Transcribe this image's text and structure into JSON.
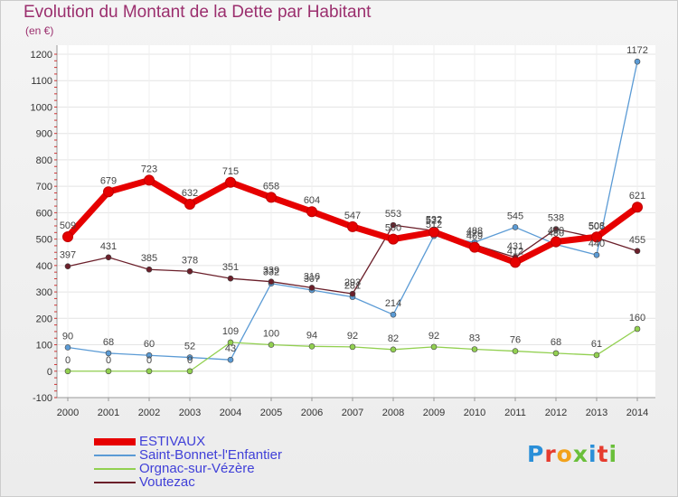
{
  "title": "Evolution du Montant de la Dette par Habitant",
  "subtitle": "(en €)",
  "logo": {
    "text": "Proxiti",
    "colors": [
      "#2a8fd8",
      "#e63b2e",
      "#f2a21b",
      "#6abf3a",
      "#2a8fd8",
      "#e63b2e",
      "#6abf3a"
    ]
  },
  "chart_data": {
    "type": "line",
    "x": [
      "2000",
      "2001",
      "2002",
      "2003",
      "2004",
      "2005",
      "2006",
      "2007",
      "2008",
      "2009",
      "2010",
      "2011",
      "2012",
      "2013",
      "2014"
    ],
    "ylim": [
      -100,
      1200
    ],
    "yticks": [
      "-100",
      "0",
      "100",
      "200",
      "300",
      "400",
      "500",
      "600",
      "700",
      "800",
      "900",
      "1000",
      "1100",
      "1200"
    ],
    "grid": true,
    "legend_position": "bottom-left",
    "series": [
      {
        "name": "ESTIVAUX",
        "color": "#e60000",
        "values": [
          509,
          679,
          723,
          632,
          715,
          658,
          604,
          547,
          500,
          527,
          469,
          412,
          490,
          508,
          621
        ],
        "labels": [
          "509",
          "679",
          "723",
          "632",
          "715",
          "658",
          "604",
          "547",
          "500",
          "527",
          "469",
          "412",
          "490",
          "508",
          "621"
        ]
      },
      {
        "name": "Saint-Bonnet-l'Enfantier",
        "color": "#5b9bd5",
        "values": [
          90,
          68,
          60,
          52,
          43,
          332,
          307,
          281,
          214,
          512,
          488,
          545,
          480,
          440,
          1172
        ],
        "labels": [
          "90",
          "68",
          "60",
          "52",
          "43",
          "332",
          "307",
          "281",
          "214",
          "512",
          "488",
          "545",
          "480",
          "440",
          "1172"
        ]
      },
      {
        "name": "Orgnac-sur-Vézère",
        "color": "#92d050",
        "values": [
          0,
          0,
          0,
          0,
          109,
          100,
          94,
          92,
          82,
          92,
          83,
          76,
          68,
          61,
          160
        ],
        "labels": [
          "0",
          "0",
          "0",
          "0",
          "109",
          "100",
          "94",
          "92",
          "82",
          "92",
          "83",
          "76",
          "68",
          "61",
          "160"
        ]
      },
      {
        "name": "Voutezac",
        "color": "#6b1f2a",
        "values": [
          397,
          431,
          385,
          378,
          351,
          339,
          316,
          293,
          553,
          532,
          479,
          431,
          538,
          505,
          455
        ],
        "labels": [
          "397",
          "431",
          "385",
          "378",
          "351",
          "339",
          "316",
          "293",
          "553",
          "532",
          "479",
          "431",
          "538",
          "505",
          "455"
        ]
      }
    ]
  }
}
